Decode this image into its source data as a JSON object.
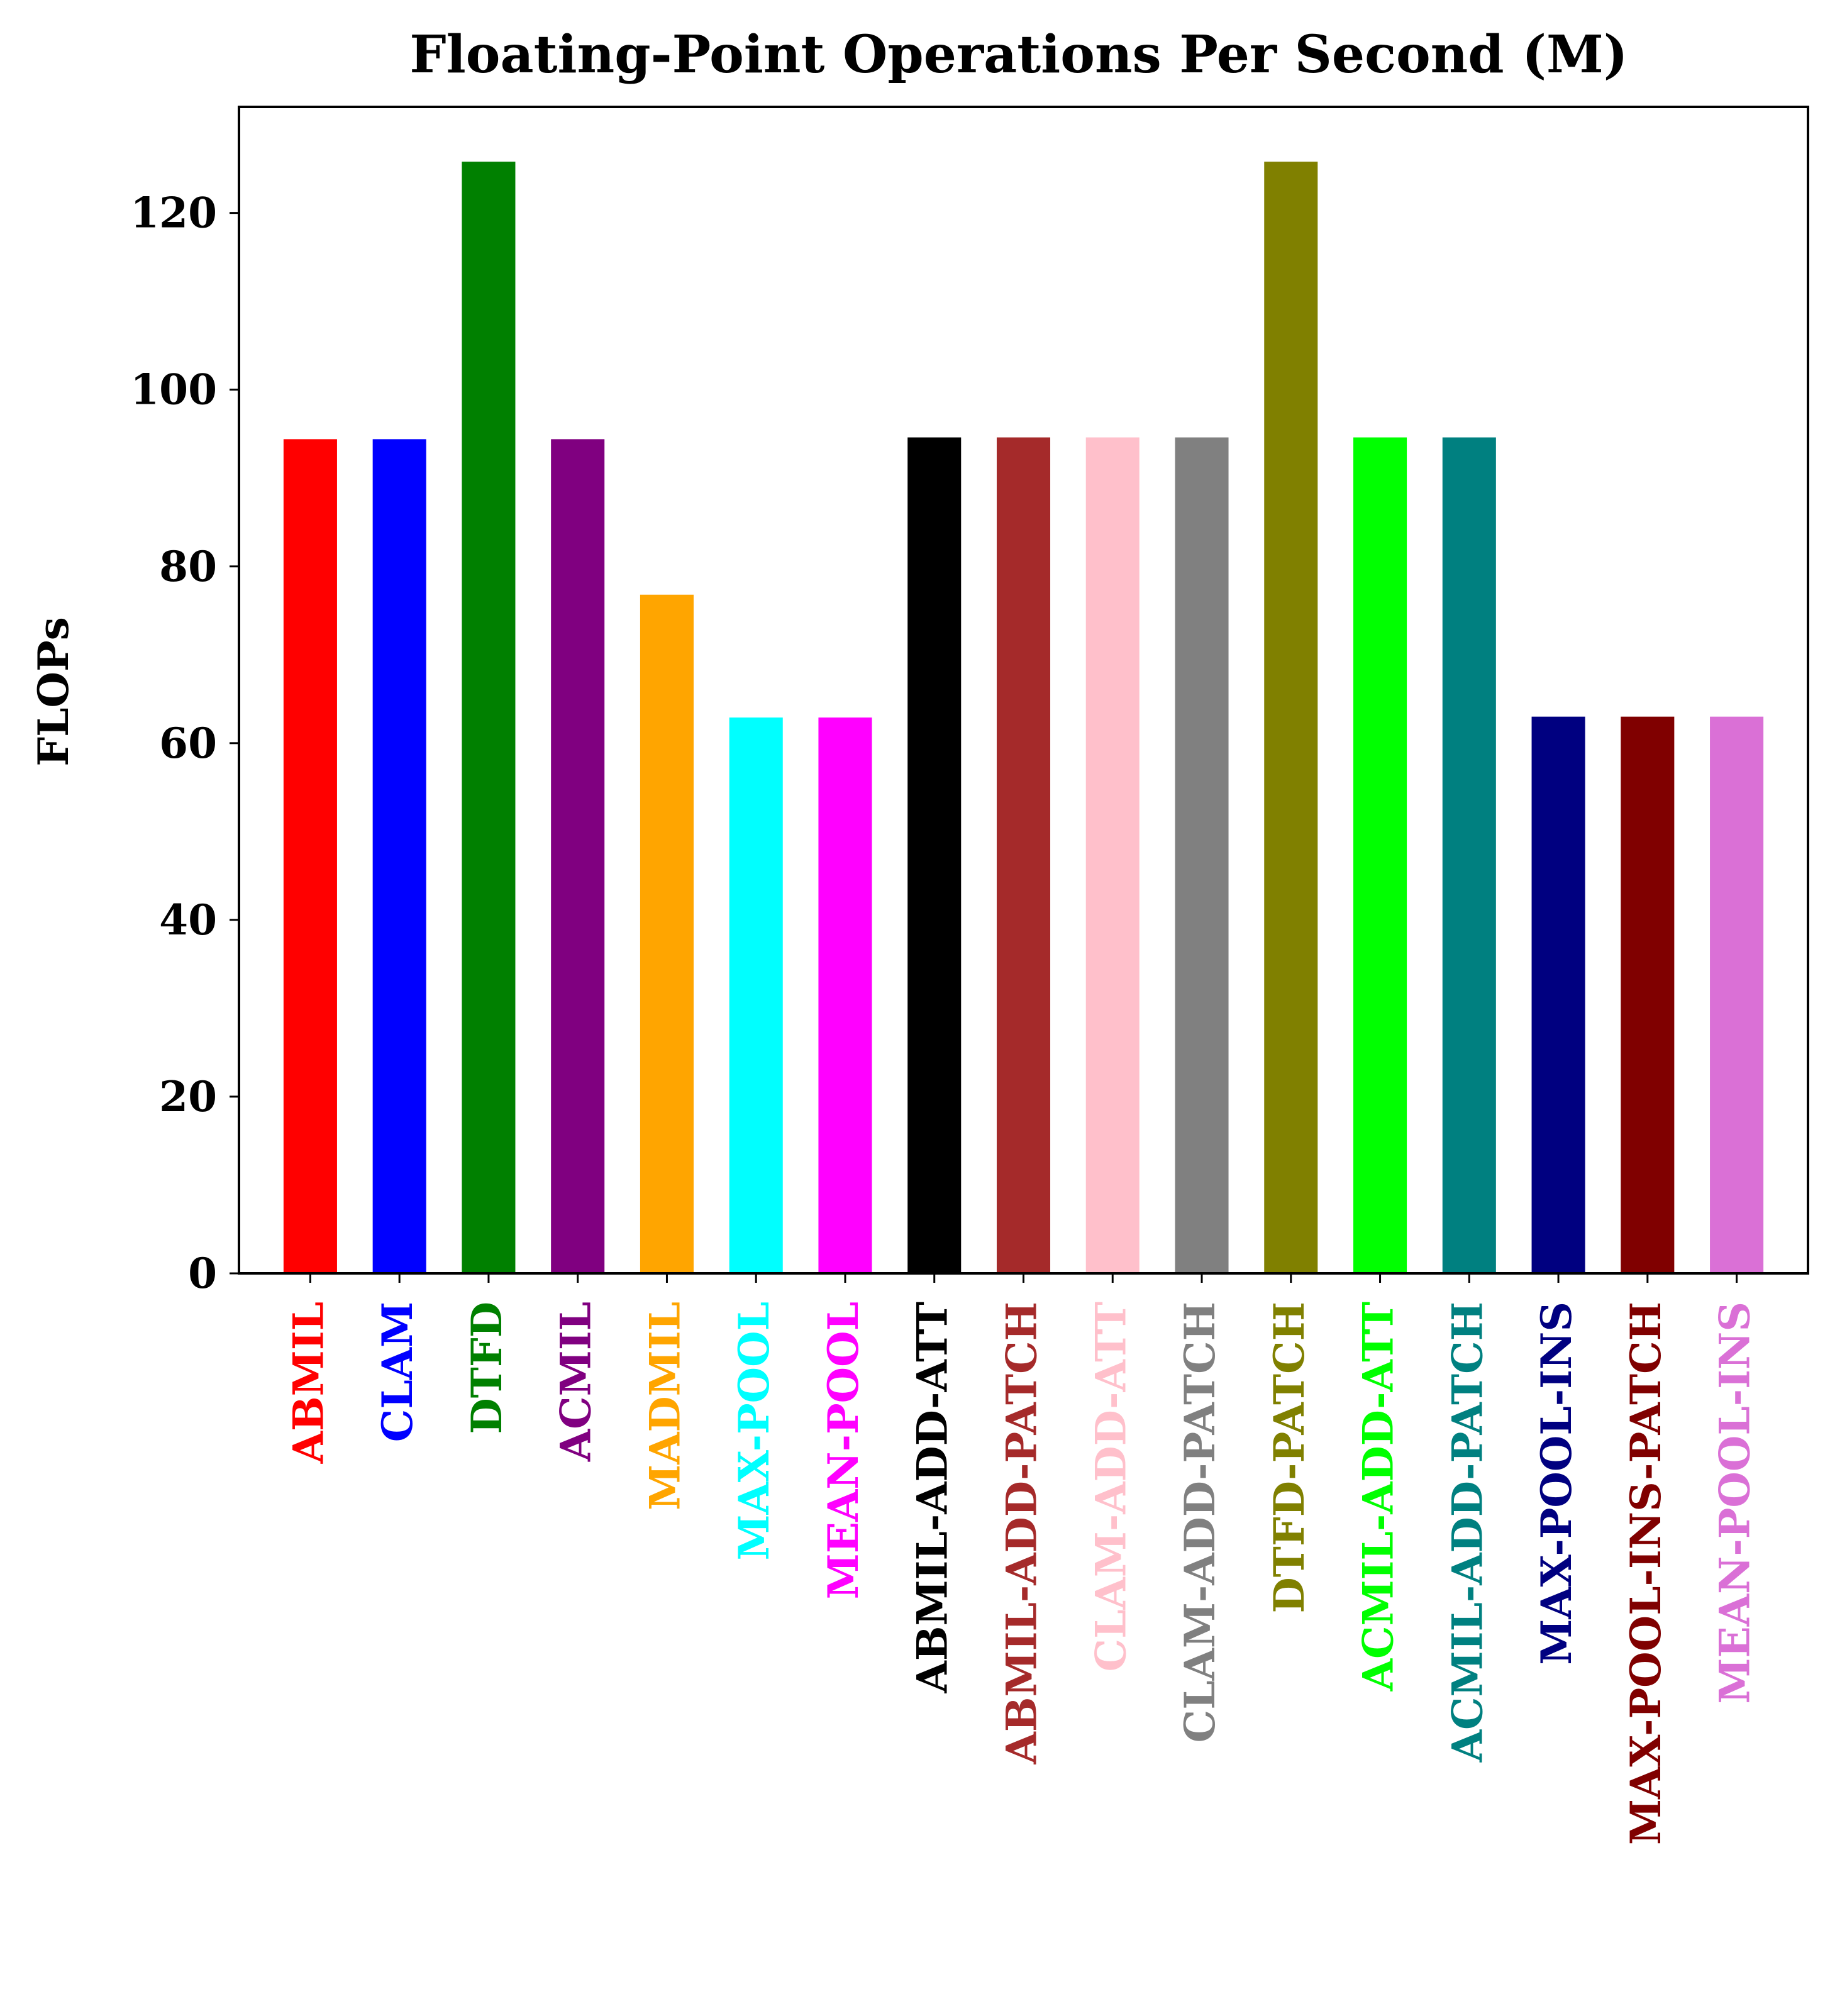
{
  "chart_data": {
    "type": "bar",
    "title": "Floating-Point Operations Per Second (M)",
    "xlabel": "",
    "ylabel": "FLOPs",
    "ylim": [
      0,
      132
    ],
    "yticks": [
      0,
      20,
      40,
      60,
      80,
      100,
      120
    ],
    "grid": false,
    "legend": "none",
    "categories": [
      "ABMIL",
      "CLAM",
      "DTFD",
      "ACMIL",
      "MADMIL",
      "MAX-POOL",
      "MEAN-POOL",
      "ABMIL-ADD-ATT",
      "ABMIL-ADD-PATCH",
      "CLAM-ADD-ATT",
      "CLAM-ADD-PATCH",
      "DTFD-PATCH",
      "ACMIL-ADD-ATT",
      "ACMIL-ADD-PATCH",
      "MAX-POOL-INS",
      "MAX-POOL-INS-PATCH",
      "MEAN-POOL-INS"
    ],
    "values": [
      94.4,
      94.4,
      125.8,
      94.4,
      76.8,
      62.9,
      62.9,
      94.6,
      94.6,
      94.6,
      94.6,
      125.8,
      94.6,
      94.6,
      63.0,
      63.0,
      63.0
    ],
    "colors": [
      "#ff0000",
      "#0000ff",
      "#008000",
      "#800080",
      "#ffa500",
      "#00ffff",
      "#ff00ff",
      "#000000",
      "#a52a2a",
      "#ffc0cb",
      "#808080",
      "#808000",
      "#00ff00",
      "#008080",
      "#000080",
      "#800000",
      "#da70d6"
    ]
  }
}
